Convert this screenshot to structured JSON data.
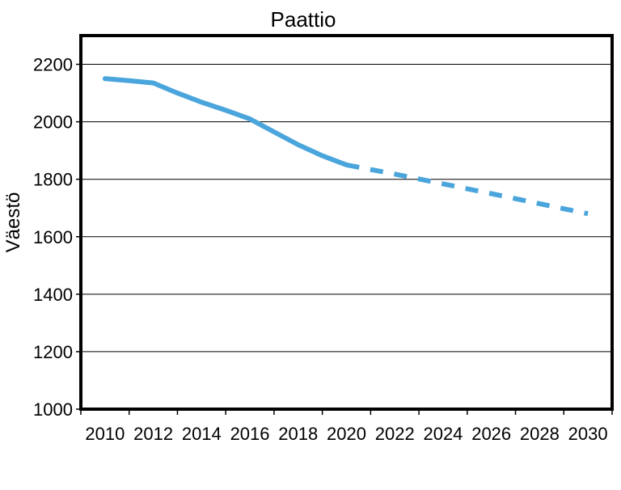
{
  "chart_data": {
    "type": "line",
    "title": "Paattio",
    "xlabel": "",
    "ylabel": "Väestö",
    "ylim": [
      1000,
      2300
    ],
    "yticks": [
      1000,
      1200,
      1400,
      1600,
      1800,
      2000,
      2200
    ],
    "xlim": [
      2009,
      2031
    ],
    "xticks": [
      2010,
      2012,
      2014,
      2016,
      2018,
      2020,
      2022,
      2024,
      2026,
      2028,
      2030
    ],
    "grid": true,
    "series": [
      {
        "style": "solid",
        "color": "#4aa5dc",
        "x": [
          2010,
          2011,
          2012,
          2013,
          2014,
          2015,
          2016,
          2017,
          2018,
          2019,
          2020
        ],
        "y": [
          2150,
          2143,
          2135,
          2100,
          2068,
          2040,
          2010,
          1965,
          1920,
          1882,
          1850
        ]
      },
      {
        "style": "dashed",
        "color": "#4aa5dc",
        "x": [
          2020,
          2022,
          2024,
          2026,
          2028,
          2030
        ],
        "y": [
          1850,
          1818,
          1784,
          1750,
          1715,
          1680
        ]
      }
    ]
  }
}
